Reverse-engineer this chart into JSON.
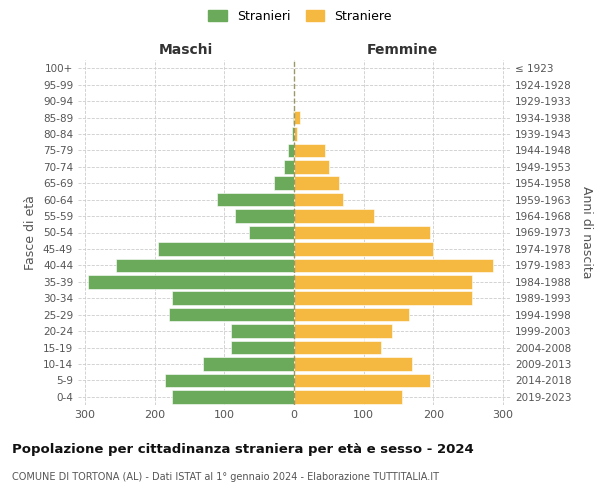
{
  "age_groups": [
    "0-4",
    "5-9",
    "10-14",
    "15-19",
    "20-24",
    "25-29",
    "30-34",
    "35-39",
    "40-44",
    "45-49",
    "50-54",
    "55-59",
    "60-64",
    "65-69",
    "70-74",
    "75-79",
    "80-84",
    "85-89",
    "90-94",
    "95-99",
    "100+"
  ],
  "birth_years": [
    "2019-2023",
    "2014-2018",
    "2009-2013",
    "2004-2008",
    "1999-2003",
    "1994-1998",
    "1989-1993",
    "1984-1988",
    "1979-1983",
    "1974-1978",
    "1969-1973",
    "1964-1968",
    "1959-1963",
    "1954-1958",
    "1949-1953",
    "1944-1948",
    "1939-1943",
    "1934-1938",
    "1929-1933",
    "1924-1928",
    "≤ 1923"
  ],
  "maschi": [
    175,
    185,
    130,
    90,
    90,
    180,
    175,
    295,
    255,
    195,
    65,
    85,
    110,
    28,
    15,
    8,
    3,
    2,
    0,
    0,
    0
  ],
  "femmine": [
    155,
    195,
    170,
    125,
    140,
    165,
    255,
    255,
    285,
    200,
    195,
    115,
    70,
    65,
    50,
    45,
    5,
    8,
    0,
    0,
    0
  ],
  "male_color": "#6aaa5a",
  "female_color": "#f5b942",
  "background_color": "#ffffff",
  "grid_color": "#cccccc",
  "title": "Popolazione per cittadinanza straniera per età e sesso - 2024",
  "subtitle": "COMUNE DI TORTONA (AL) - Dati ISTAT al 1° gennaio 2024 - Elaborazione TUTTITALIA.IT",
  "xlabel_left": "Maschi",
  "xlabel_right": "Femmine",
  "ylabel_left": "Fasce di età",
  "ylabel_right": "Anni di nascita",
  "legend_stranieri": "Stranieri",
  "legend_straniere": "Straniere",
  "xlim": 310
}
